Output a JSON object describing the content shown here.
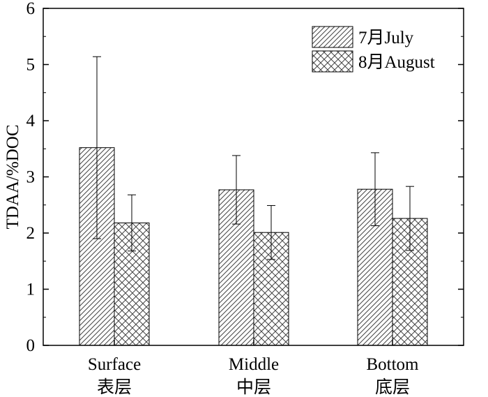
{
  "chart_data": {
    "type": "bar",
    "categories": [
      [
        "Surface",
        "表层"
      ],
      [
        "Middle",
        "中层"
      ],
      [
        "Bottom",
        "底层"
      ]
    ],
    "series": [
      {
        "name": "7月July",
        "values": [
          3.52,
          2.77,
          2.78
        ],
        "error": [
          1.62,
          0.61,
          0.65
        ],
        "pattern": "diagonal-hatch"
      },
      {
        "name": "8月August",
        "values": [
          2.18,
          2.01,
          2.26
        ],
        "error": [
          0.5,
          0.48,
          0.57
        ],
        "pattern": "cross-hatch"
      }
    ],
    "ylabel": "TDAA/%DOC",
    "xlabel": "",
    "ylim": [
      0,
      6
    ],
    "yticks": [
      "0",
      "1",
      "2",
      "3",
      "4",
      "5",
      "6"
    ],
    "legend_position": "top-right",
    "grid": false
  }
}
